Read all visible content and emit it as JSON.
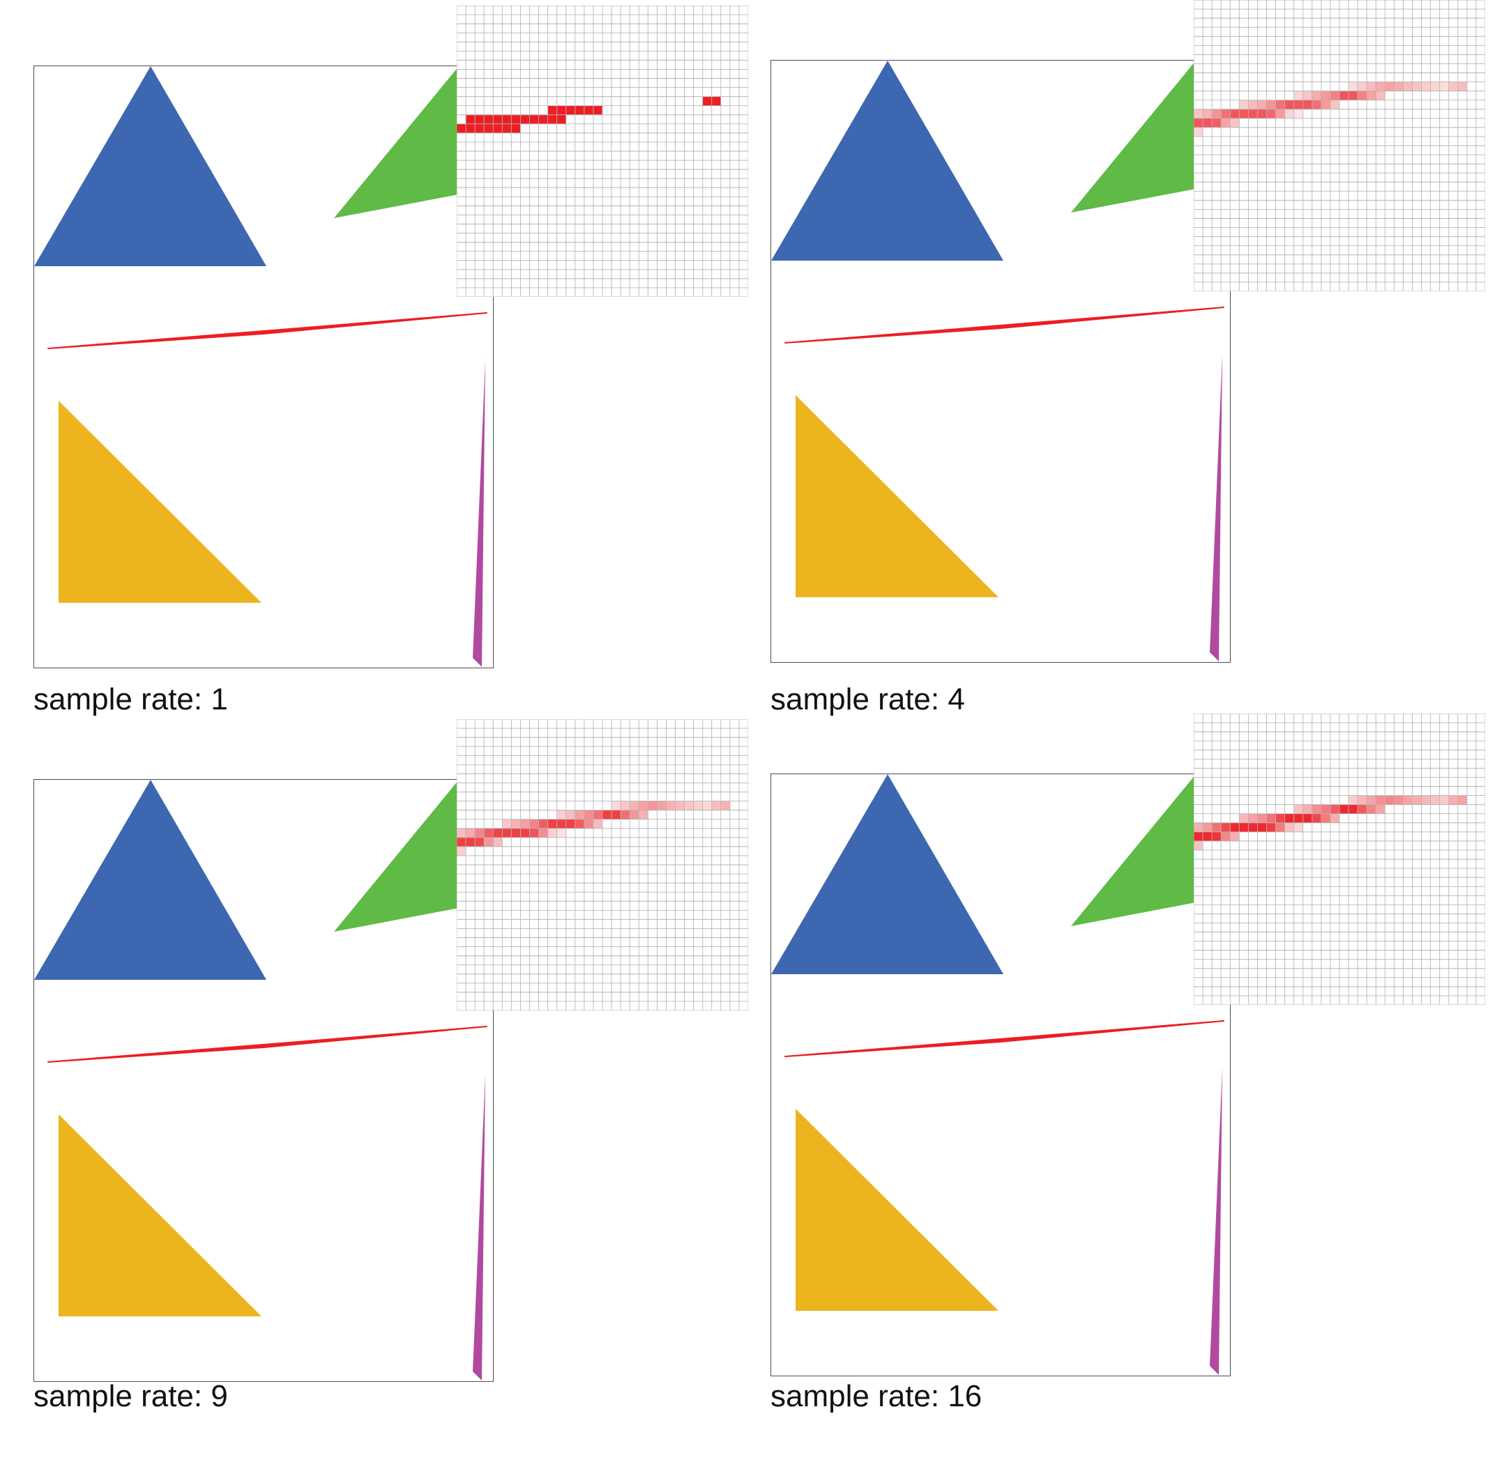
{
  "colors": {
    "blue": "#3d67b0",
    "green": "#5fba46",
    "red": "#ec1e24",
    "yellow": "#ecb41e",
    "purple": "#b14a9f",
    "grid": "#b5b5b5",
    "frame": "#4d4d4d"
  },
  "panels": [
    {
      "caption": "sample rate: 1",
      "sample_rate": 1
    },
    {
      "caption": "sample rate: 4",
      "sample_rate": 4
    },
    {
      "caption": "sample rate: 9",
      "sample_rate": 9
    },
    {
      "caption": "sample rate: 16",
      "sample_rate": 16
    }
  ]
}
